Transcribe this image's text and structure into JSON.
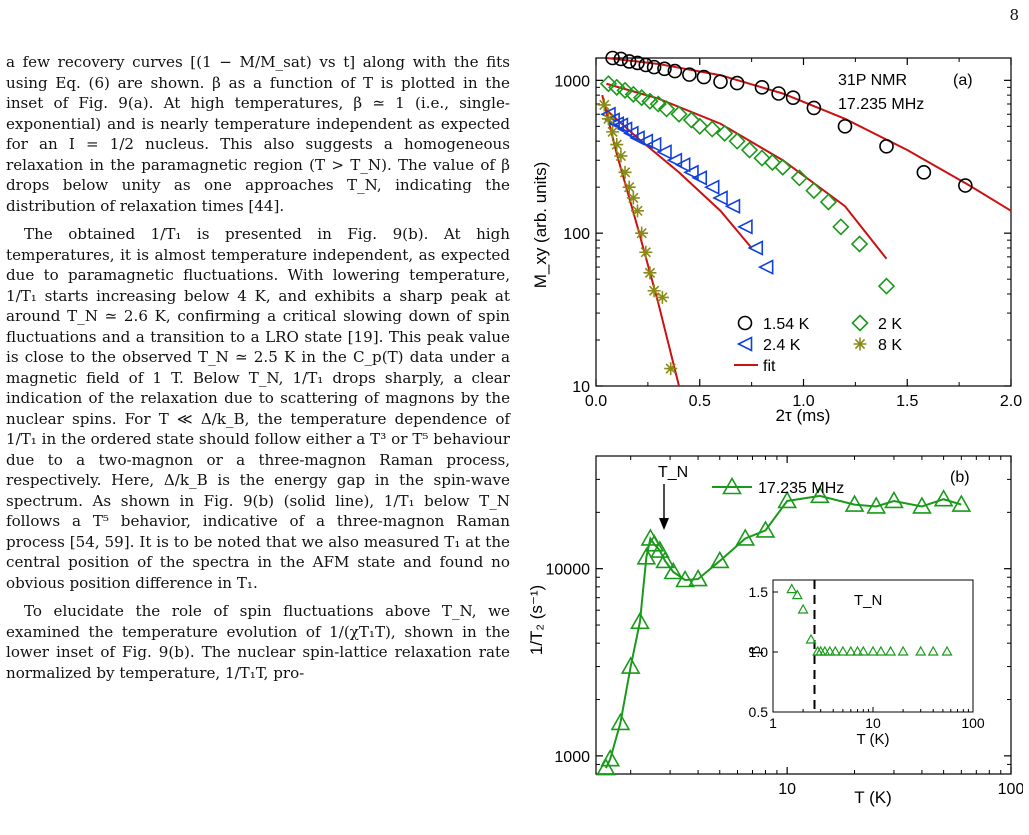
{
  "page_number": "8",
  "paragraphs": [
    "a few recovery curves [(1 − M/M_sat) vs t] along with the fits using Eq. (6) are shown. β as a function of T is plotted in the inset of Fig. 9(a). At high temperatures, β ≃ 1 (i.e., single-exponential) and is nearly temperature independent as expected for an I = 1/2 nucleus. This also suggests a homogeneous relaxation in the paramagnetic region (T > T_N). The value of β drops below unity as one approaches T_N, indicating the distribution of relaxation times [44].",
    "The obtained 1/T₁ is presented in Fig. 9(b). At high temperatures, it is almost temperature independent, as expected due to paramagnetic fluctuations. With lowering temperature, 1/T₁ starts increasing below 4 K, and exhibits a sharp peak at around T_N ≃ 2.6 K, confirming a critical slowing down of spin fluctuations and a transition to a LRO state [19]. This peak value is close to the observed T_N ≃ 2.5 K in the C_p(T) data under a magnetic field of 1 T. Below T_N, 1/T₁ drops sharply, a clear indication of the relaxation due to scattering of magnons by the nuclear spins. For T ≪ Δ/k_B, the temperature dependence of 1/T₁ in the ordered state should follow either a T³ or T⁵ behaviour due to a two-magnon or a three-magnon Raman process, respectively. Here, Δ/k_B is the energy gap in the spin-wave spectrum. As shown in Fig. 9(b) (solid line), 1/T₁ below T_N follows a T⁵ behavior, indicative of a three-magnon Raman process [54, 59]. It is to be noted that we also measured T₁ at the central position of the spectra in the AFM state and found no obvious position difference in T₁.",
    "To elucidate the role of spin fluctuations above T_N, we examined the temperature evolution of 1/(χT₁T), shown in the lower inset of Fig. 9(b). The nuclear spin-lattice relaxation rate normalized by temperature, 1/T₁T, pro-"
  ],
  "chart_data": [
    {
      "type": "scatter",
      "panel": "(a)",
      "annotation": "31P NMR",
      "annotation2": "17.235 MHz",
      "xlabel": "2τ (ms)",
      "ylabel": "M_xy (arb. units)",
      "xlim": [
        0,
        2.0
      ],
      "ylim": [
        10,
        1400
      ],
      "yscale": "log",
      "xticks": [
        "0.0",
        "0.5",
        "1.0",
        "1.5",
        "2.0"
      ],
      "yticks": [
        "10",
        "100",
        "1000"
      ],
      "legend": "bottom-right",
      "series": [
        {
          "name": "1.54 K",
          "marker": "circle",
          "color": "#000000",
          "x": [
            0.08,
            0.12,
            0.16,
            0.2,
            0.24,
            0.28,
            0.33,
            0.38,
            0.45,
            0.52,
            0.6,
            0.68,
            0.8,
            0.88,
            0.95,
            1.05,
            1.2,
            1.4,
            1.58,
            1.78
          ],
          "y": [
            1400,
            1380,
            1330,
            1300,
            1260,
            1220,
            1190,
            1150,
            1090,
            1050,
            980,
            960,
            900,
            820,
            770,
            660,
            500,
            370,
            250,
            205
          ]
        },
        {
          "name": "2 K",
          "marker": "diamond",
          "color": "#1a9a1a",
          "x": [
            0.06,
            0.1,
            0.14,
            0.18,
            0.22,
            0.26,
            0.3,
            0.34,
            0.4,
            0.46,
            0.5,
            0.56,
            0.62,
            0.68,
            0.74,
            0.8,
            0.85,
            0.9,
            0.98,
            1.05,
            1.12,
            1.18,
            1.27,
            1.4
          ],
          "y": [
            950,
            900,
            860,
            810,
            770,
            730,
            700,
            650,
            600,
            550,
            500,
            480,
            450,
            400,
            350,
            310,
            290,
            270,
            230,
            190,
            160,
            110,
            85,
            45
          ]
        },
        {
          "name": "2.4 K",
          "marker": "triangle-left",
          "color": "#1040dd",
          "x": [
            0.06,
            0.08,
            0.1,
            0.12,
            0.14,
            0.17,
            0.2,
            0.24,
            0.28,
            0.33,
            0.38,
            0.42,
            0.46,
            0.5,
            0.56,
            0.6,
            0.66,
            0.72,
            0.77,
            0.82
          ],
          "y": [
            600,
            550,
            520,
            510,
            480,
            450,
            420,
            400,
            380,
            340,
            300,
            280,
            250,
            230,
            200,
            170,
            150,
            110,
            80,
            60
          ]
        },
        {
          "name": "8 K",
          "marker": "star",
          "color": "#8a8a18",
          "x": [
            0.04,
            0.06,
            0.08,
            0.1,
            0.12,
            0.14,
            0.16,
            0.18,
            0.2,
            0.22,
            0.24,
            0.26,
            0.28,
            0.32,
            0.36
          ],
          "y": [
            690,
            560,
            460,
            380,
            320,
            250,
            200,
            170,
            140,
            100,
            75,
            55,
            42,
            38,
            13
          ]
        }
      ],
      "fits": [
        {
          "name": "fit",
          "color": "#cc1111",
          "x": [
            0.05,
            0.3,
            0.6,
            0.9,
            1.2,
            1.5,
            1.8,
            2.0
          ],
          "y": [
            1400,
            1280,
            1080,
            820,
            560,
            350,
            205,
            140
          ]
        },
        {
          "x": [
            0.05,
            0.3,
            0.6,
            0.9,
            1.2,
            1.4
          ],
          "y": [
            950,
            760,
            520,
            300,
            150,
            68
          ]
        },
        {
          "x": [
            0.05,
            0.2,
            0.4,
            0.6,
            0.75
          ],
          "y": [
            640,
            420,
            250,
            140,
            80
          ]
        },
        {
          "x": [
            0.03,
            0.1,
            0.2,
            0.3,
            0.4
          ],
          "y": [
            800,
            330,
            110,
            35,
            10
          ]
        }
      ]
    },
    {
      "type": "line",
      "panel": "(b)",
      "legend_label": "17.235 MHz",
      "xlabel": "T (K)",
      "ylabel": "1/T₂ (s⁻¹)",
      "xscale": "log",
      "yscale": "log",
      "xlim": [
        1.4,
        100
      ],
      "ylim": [
        800,
        40000
      ],
      "xticks": [
        "10",
        "100"
      ],
      "yticks": [
        "1000",
        "10000"
      ],
      "annotation": "T_N",
      "series": [
        {
          "name": "17.235 MHz",
          "color": "#1a9a1a",
          "x": [
            1.55,
            1.62,
            1.8,
            2.0,
            2.2,
            2.35,
            2.45,
            2.55,
            2.7,
            2.85,
            3.1,
            3.5,
            4.0,
            5.0,
            6.5,
            8.0,
            10.0,
            14.0,
            20.0,
            25.0,
            30.0,
            40.0,
            50.0,
            60.0
          ],
          "y": [
            860,
            960,
            1500,
            3000,
            5200,
            11500,
            14500,
            13500,
            12500,
            11000,
            9600,
            8700,
            8800,
            11000,
            14500,
            16000,
            23000,
            24500,
            22000,
            21500,
            23000,
            21500,
            23500,
            22000
          ]
        }
      ]
    },
    {
      "type": "scatter",
      "panel": "inset",
      "xlabel": "T (K)",
      "ylabel": "β",
      "xscale": "log",
      "xlim": [
        1,
        100
      ],
      "ylim": [
        0.5,
        1.6
      ],
      "xticks": [
        "1",
        "10",
        "100"
      ],
      "yticks": [
        "0.5",
        "1.0",
        "1.5"
      ],
      "annotation": "T_N",
      "series": [
        {
          "color": "#1a9a1a",
          "x": [
            1.54,
            1.75,
            2.0,
            2.4,
            2.8,
            3.0,
            3.3,
            3.7,
            4.2,
            5.0,
            6.0,
            7.0,
            8.0,
            10.0,
            12.0,
            15.0,
            20.0,
            30.0,
            40.0,
            55.0
          ],
          "y": [
            1.52,
            1.47,
            1.35,
            1.1,
            1.0,
            1.0,
            1.0,
            1.0,
            1.0,
            1.0,
            1.0,
            1.0,
            1.0,
            1.0,
            1.0,
            1.0,
            1.0,
            1.0,
            1.0,
            1.0
          ]
        }
      ]
    }
  ]
}
